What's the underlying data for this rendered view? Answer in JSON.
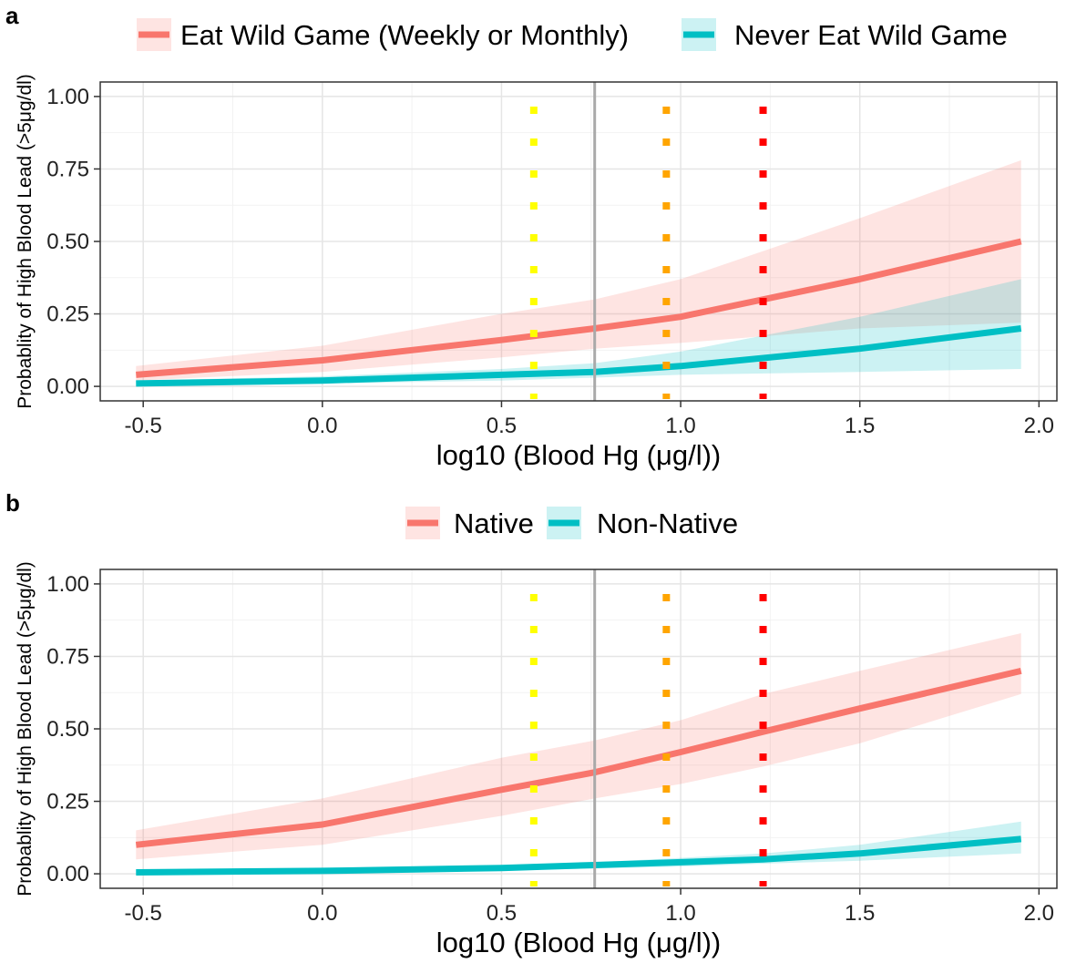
{
  "chart_data": [
    {
      "panel_label": "a",
      "type": "line",
      "xlabel": "log10 (Blood Hg (μg/l))",
      "ylabel": "Probablity of High Blood Lead (>5μg/dl)",
      "xlim": [
        -0.62,
        2.05
      ],
      "ylim": [
        -0.05,
        1.05
      ],
      "x_ticks": [
        -0.5,
        0.0,
        0.5,
        1.0,
        1.5,
        2.0
      ],
      "x_tick_labels": [
        "-0.5",
        "0.0",
        "0.5",
        "1.0",
        "1.5",
        "2.0"
      ],
      "y_ticks": [
        0.0,
        0.25,
        0.5,
        0.75,
        1.0
      ],
      "y_tick_labels": [
        "0.00",
        "0.25",
        "0.50",
        "0.75",
        "1.00"
      ],
      "grid": true,
      "legend_position": "top",
      "vertical_lines": [
        {
          "x": 0.59,
          "style": "dotted",
          "color": "#ffff00"
        },
        {
          "x": 0.76,
          "style": "solid",
          "color": "#a9a9a9"
        },
        {
          "x": 0.96,
          "style": "dotted",
          "color": "#ffa500"
        },
        {
          "x": 1.23,
          "style": "dotted",
          "color": "#ff0000"
        }
      ],
      "series": [
        {
          "name": "Eat Wild Game (Weekly or Monthly)",
          "color": "#f8766d",
          "x": [
            -0.52,
            0.0,
            0.5,
            0.76,
            1.0,
            1.5,
            1.95
          ],
          "y": [
            0.04,
            0.09,
            0.16,
            0.2,
            0.24,
            0.37,
            0.5
          ],
          "lower": [
            0.02,
            0.05,
            0.1,
            0.13,
            0.15,
            0.2,
            0.22
          ],
          "upper": [
            0.07,
            0.14,
            0.25,
            0.3,
            0.37,
            0.58,
            0.78
          ]
        },
        {
          "name": "Never Eat Wild Game",
          "color": "#00bfc4",
          "x": [
            -0.52,
            0.0,
            0.5,
            0.76,
            1.0,
            1.5,
            1.95
          ],
          "y": [
            0.01,
            0.02,
            0.04,
            0.05,
            0.07,
            0.13,
            0.2
          ],
          "lower": [
            0.003,
            0.01,
            0.02,
            0.03,
            0.04,
            0.05,
            0.06
          ],
          "upper": [
            0.02,
            0.035,
            0.06,
            0.08,
            0.12,
            0.24,
            0.37
          ]
        }
      ]
    },
    {
      "panel_label": "b",
      "type": "line",
      "xlabel": "log10 (Blood Hg (μg/l))",
      "ylabel": "Probablity of High Blood Lead (>5μg/dl)",
      "xlim": [
        -0.62,
        2.05
      ],
      "ylim": [
        -0.05,
        1.05
      ],
      "x_ticks": [
        -0.5,
        0.0,
        0.5,
        1.0,
        1.5,
        2.0
      ],
      "x_tick_labels": [
        "-0.5",
        "0.0",
        "0.5",
        "1.0",
        "1.5",
        "2.0"
      ],
      "y_ticks": [
        0.0,
        0.25,
        0.5,
        0.75,
        1.0
      ],
      "y_tick_labels": [
        "0.00",
        "0.25",
        "0.50",
        "0.75",
        "1.00"
      ],
      "grid": true,
      "legend_position": "top",
      "vertical_lines": [
        {
          "x": 0.59,
          "style": "dotted",
          "color": "#ffff00"
        },
        {
          "x": 0.76,
          "style": "solid",
          "color": "#a9a9a9"
        },
        {
          "x": 0.96,
          "style": "dotted",
          "color": "#ffa500"
        },
        {
          "x": 1.23,
          "style": "dotted",
          "color": "#ff0000"
        }
      ],
      "series": [
        {
          "name": "Native",
          "color": "#f8766d",
          "x": [
            -0.52,
            0.0,
            0.5,
            0.76,
            1.0,
            1.23,
            1.5,
            1.95
          ],
          "y": [
            0.1,
            0.17,
            0.29,
            0.35,
            0.42,
            0.49,
            0.57,
            0.7
          ],
          "lower": [
            0.05,
            0.1,
            0.2,
            0.26,
            0.31,
            0.37,
            0.45,
            0.62
          ],
          "upper": [
            0.15,
            0.26,
            0.4,
            0.46,
            0.53,
            0.62,
            0.7,
            0.83
          ]
        },
        {
          "name": "Non-Native",
          "color": "#00bfc4",
          "x": [
            -0.52,
            0.0,
            0.5,
            0.76,
            1.0,
            1.23,
            1.5,
            1.95
          ],
          "y": [
            0.005,
            0.01,
            0.02,
            0.03,
            0.04,
            0.05,
            0.07,
            0.12
          ],
          "lower": [
            0.001,
            0.005,
            0.012,
            0.018,
            0.025,
            0.035,
            0.045,
            0.07
          ],
          "upper": [
            0.01,
            0.02,
            0.03,
            0.04,
            0.055,
            0.07,
            0.1,
            0.18
          ]
        }
      ]
    }
  ]
}
